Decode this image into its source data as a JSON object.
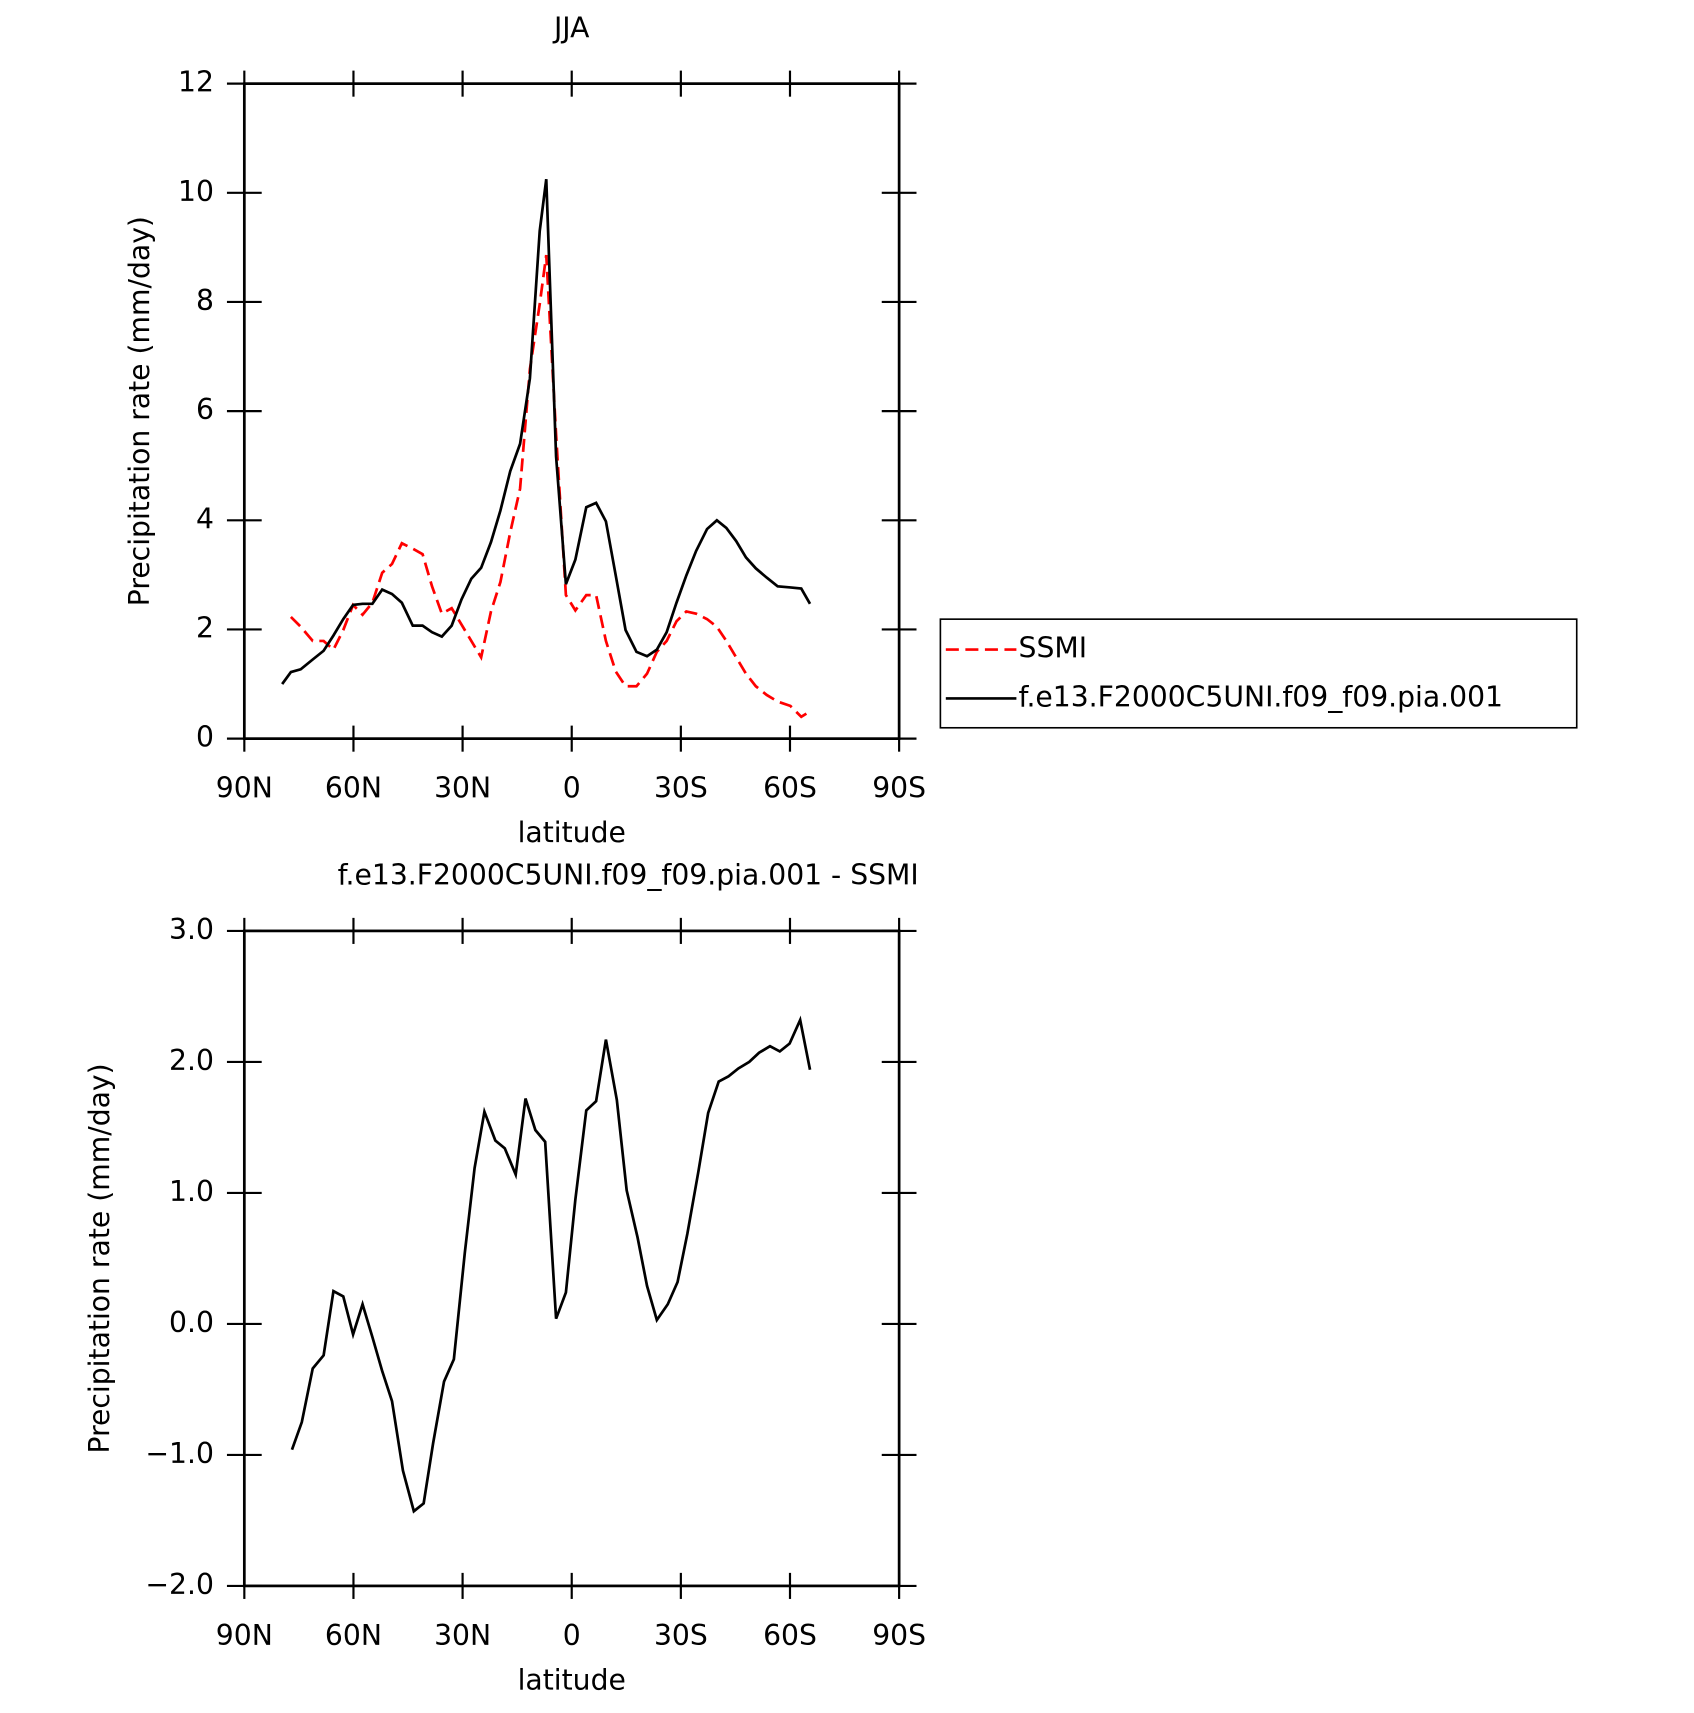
{
  "chart_data": [
    {
      "type": "line",
      "title": "JJA",
      "xlabel": "latitude",
      "ylabel": "Precipitation rate (mm/day)",
      "x": [
        79.6,
        77.2,
        74.5,
        71.2,
        68.2,
        65.5,
        62.8,
        60.1,
        57.5,
        54.8,
        52.1,
        49.4,
        46.7,
        43.7,
        41.0,
        38.4,
        35.7,
        33.0,
        30.3,
        27.6,
        24.9,
        22.2,
        19.6,
        16.9,
        14.2,
        11.5,
        8.8,
        7.0,
        4.3,
        1.6,
        -1.0,
        -4.0,
        -6.7,
        -9.4,
        -12.1,
        -14.8,
        -17.8,
        -20.7,
        -23.4,
        -26.1,
        -28.8,
        -31.5,
        -34.2,
        -37.2,
        -39.9,
        -42.5,
        -45.2,
        -47.9,
        -50.6,
        -53.6,
        -56.6,
        -60.1,
        -63.1,
        -65.5
      ],
      "series": [
        {
          "name": "SSMI",
          "color": "#ff0000",
          "style": "dashed",
          "values": [
            null,
            2.23,
            2.05,
            1.79,
            1.79,
            1.63,
            1.99,
            2.45,
            2.27,
            2.49,
            3.04,
            3.2,
            3.58,
            3.48,
            3.38,
            2.79,
            2.29,
            2.39,
            2.09,
            1.79,
            1.49,
            2.33,
            2.87,
            3.78,
            4.58,
            6.77,
            7.96,
            8.86,
            5.57,
            2.63,
            2.35,
            2.63,
            2.63,
            1.79,
            1.23,
            0.96,
            0.96,
            1.19,
            1.59,
            1.79,
            2.15,
            2.33,
            2.29,
            2.19,
            2.05,
            1.79,
            1.49,
            1.19,
            0.96,
            0.8,
            0.68,
            0.6,
            0.4,
            0.5
          ]
        },
        {
          "name": "f.e13.F2000C5UNI.f09_f09.pia.001",
          "color": "#000000",
          "style": "solid",
          "values": [
            1.0,
            1.22,
            1.27,
            1.45,
            1.61,
            1.89,
            2.19,
            2.45,
            2.47,
            2.47,
            2.73,
            2.65,
            2.49,
            2.07,
            2.07,
            1.95,
            1.87,
            2.07,
            2.55,
            2.93,
            3.13,
            3.6,
            4.18,
            4.9,
            5.4,
            6.6,
            9.3,
            10.25,
            5.17,
            2.83,
            3.28,
            4.24,
            4.32,
            3.98,
            2.99,
            1.99,
            1.59,
            1.51,
            1.63,
            1.95,
            2.49,
            2.99,
            3.44,
            3.84,
            4.0,
            3.86,
            3.62,
            3.32,
            3.12,
            2.95,
            2.79,
            2.77,
            2.75,
            2.47
          ]
        }
      ],
      "xlim": [
        90,
        -90
      ],
      "xticks": [
        {
          "value": 90,
          "label": "90N"
        },
        {
          "value": 60,
          "label": "60N"
        },
        {
          "value": 30,
          "label": "30N"
        },
        0,
        {
          "value": -30,
          "label": "30S"
        },
        {
          "value": -60,
          "label": "60S"
        },
        {
          "value": -90,
          "label": "90S"
        }
      ],
      "ylim": [
        0,
        12
      ],
      "yticks": [
        0,
        2,
        4,
        6,
        8,
        10,
        12
      ],
      "legend": "right"
    },
    {
      "type": "line",
      "title": "f.e13.F2000C5UNI.f09_f09.pia.001 - SSMI",
      "xlabel": "latitude",
      "ylabel": "Precipitation rate (mm/day)",
      "x": [
        76.9,
        74.2,
        71.2,
        68.2,
        65.5,
        62.8,
        60.1,
        57.5,
        54.8,
        52.1,
        49.4,
        46.4,
        43.4,
        40.7,
        38.1,
        35.1,
        32.4,
        29.4,
        26.7,
        24.0,
        21.0,
        18.4,
        15.4,
        12.7,
        10.0,
        7.3,
        4.3,
        1.6,
        -1.0,
        -4.0,
        -6.7,
        -9.4,
        -12.4,
        -15.1,
        -18.1,
        -20.7,
        -23.4,
        -26.4,
        -29.1,
        -31.8,
        -34.8,
        -37.5,
        -40.4,
        -43.1,
        -45.8,
        -48.8,
        -51.5,
        -54.5,
        -57.2,
        -59.9,
        -62.8,
        -65.5
      ],
      "values": [
        -0.96,
        -0.75,
        -0.34,
        -0.24,
        0.25,
        0.21,
        -0.08,
        0.15,
        -0.1,
        -0.36,
        -0.59,
        -1.12,
        -1.43,
        -1.37,
        -0.91,
        -0.44,
        -0.27,
        0.54,
        1.19,
        1.62,
        1.4,
        1.34,
        1.14,
        1.72,
        1.48,
        1.39,
        0.04,
        0.24,
        0.95,
        1.63,
        1.7,
        2.17,
        1.71,
        1.02,
        0.66,
        0.29,
        0.03,
        0.15,
        0.32,
        0.69,
        1.16,
        1.61,
        1.85,
        1.89,
        1.95,
        2.0,
        2.07,
        2.12,
        2.08,
        2.14,
        2.32,
        1.94
      ],
      "color": "#000000",
      "xlim": [
        90,
        -90
      ],
      "xticks": [
        {
          "value": 90,
          "label": "90N"
        },
        {
          "value": 60,
          "label": "60N"
        },
        {
          "value": 30,
          "label": "30N"
        },
        0,
        {
          "value": -30,
          "label": "30S"
        },
        {
          "value": -60,
          "label": "60S"
        },
        {
          "value": -90,
          "label": "90S"
        }
      ],
      "ylim": [
        -2,
        3
      ],
      "yticks": [
        {
          "value": -2,
          "label": "−2.0"
        },
        {
          "value": -1,
          "label": "−1.0"
        },
        {
          "value": 0,
          "label": "0.0"
        },
        {
          "value": 1,
          "label": "1.0"
        },
        {
          "value": 2,
          "label": "2.0"
        },
        {
          "value": 3,
          "label": "3.0"
        }
      ]
    }
  ]
}
